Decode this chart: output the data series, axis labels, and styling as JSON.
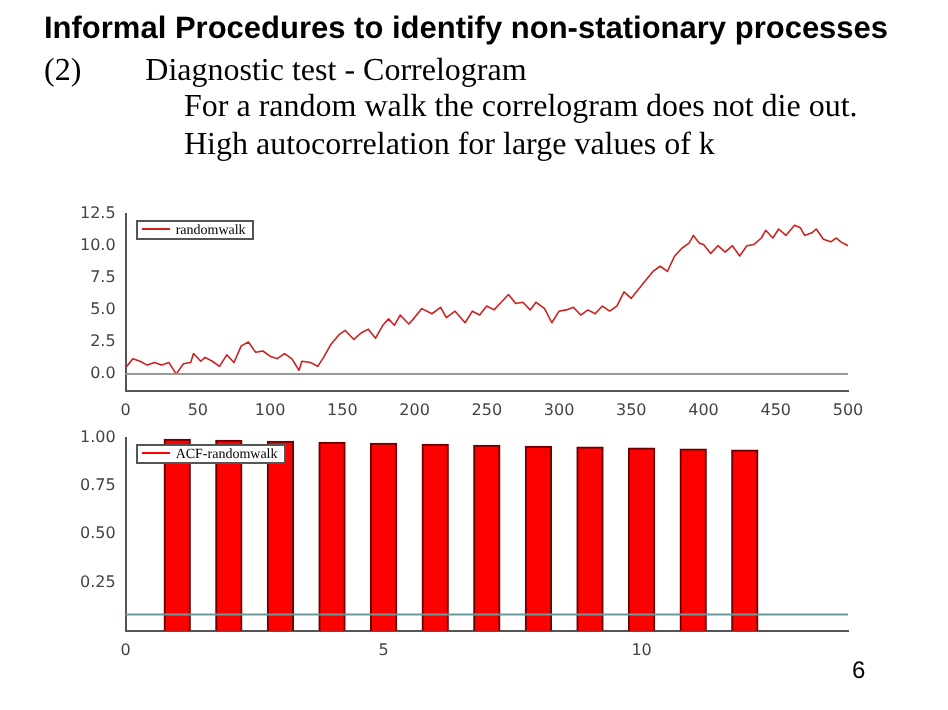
{
  "chart_data": [
    {
      "type": "line",
      "title": "Informal Procedures to identify non-stationary processes",
      "subtitle": "(2)  Diagnostic test - Correlogram",
      "annotations": [
        "For a random walk the correlogram does not die out.",
        "High autocorrelation for large values of k"
      ],
      "series": [
        {
          "name": "randomwalk",
          "color": "#cc2020",
          "x": [
            0,
            5,
            10,
            15,
            20,
            25,
            30,
            35,
            40,
            45,
            47,
            52,
            55,
            60,
            65,
            70,
            75,
            80,
            85,
            90,
            95,
            100,
            105,
            110,
            115,
            120,
            122,
            128,
            133,
            137,
            142,
            148,
            152,
            158,
            163,
            168,
            173,
            178,
            182,
            186,
            190,
            196,
            200,
            205,
            212,
            218,
            222,
            228,
            235,
            240,
            245,
            250,
            255,
            260,
            265,
            270,
            275,
            280,
            284,
            290,
            295,
            300,
            305,
            310,
            315,
            320,
            325,
            330,
            335,
            340,
            345,
            350,
            355,
            360,
            365,
            370,
            375,
            380,
            385,
            390,
            393,
            397,
            400,
            405,
            410,
            415,
            420,
            425,
            430,
            435,
            440,
            443,
            448,
            452,
            457,
            463,
            467,
            470,
            475,
            478,
            483,
            488,
            492,
            495,
            500
          ],
          "values": [
            0.5,
            1.2,
            1.0,
            0.7,
            0.9,
            0.7,
            0.9,
            0.0,
            0.8,
            0.9,
            1.6,
            1.0,
            1.3,
            1.0,
            0.6,
            1.5,
            0.9,
            2.2,
            2.5,
            1.7,
            1.8,
            1.4,
            1.2,
            1.6,
            1.2,
            0.3,
            1.0,
            0.9,
            0.6,
            1.3,
            2.3,
            3.1,
            3.4,
            2.7,
            3.2,
            3.5,
            2.8,
            3.8,
            4.3,
            3.8,
            4.6,
            3.9,
            4.4,
            5.1,
            4.7,
            5.2,
            4.4,
            4.9,
            4.0,
            4.9,
            4.6,
            5.3,
            5.0,
            5.6,
            6.2,
            5.5,
            5.6,
            5.0,
            5.6,
            5.1,
            4.0,
            4.9,
            5.0,
            5.2,
            4.6,
            5.0,
            4.7,
            5.3,
            4.9,
            5.3,
            6.4,
            5.9,
            6.6,
            7.3,
            8.0,
            8.4,
            8.0,
            9.2,
            9.8,
            10.2,
            10.8,
            10.2,
            10.1,
            9.4,
            10.0,
            9.5,
            10.0,
            9.2,
            10.0,
            10.1,
            10.6,
            11.2,
            10.6,
            11.3,
            10.8,
            11.6,
            11.4,
            10.8,
            11.0,
            11.3,
            10.5,
            10.3,
            10.6,
            10.3,
            10.0
          ]
        }
      ],
      "xlim": [
        0,
        500
      ],
      "xticks": [
        0,
        50,
        100,
        150,
        200,
        250,
        300,
        350,
        400,
        450,
        500
      ],
      "ylim": [
        -1.3,
        12.5
      ],
      "yticks": [
        {
          "value": 0,
          "label": "0.0"
        },
        {
          "value": 2.5,
          "label": "2.5"
        },
        {
          "value": 5,
          "label": "5.0"
        },
        {
          "value": 7.5,
          "label": "7.5"
        },
        {
          "value": 10,
          "label": "10.0"
        },
        {
          "value": 12.5,
          "label": "12.5"
        }
      ],
      "ref_lines": [
        {
          "axis": "y",
          "value": 0,
          "color": "#999999"
        }
      ],
      "grid": false,
      "legend": "top left",
      "marker": "none",
      "line_style": "solid"
    },
    {
      "type": "bar",
      "annotations": [
        "6"
      ],
      "series": [
        {
          "name": "ACF-randomwalk",
          "color": "#ff0000",
          "x": [
            1,
            2,
            3,
            4,
            5,
            6,
            7,
            8,
            9,
            10,
            11,
            12
          ],
          "values": [
            0.99,
            0.985,
            0.98,
            0.975,
            0.97,
            0.965,
            0.96,
            0.955,
            0.95,
            0.945,
            0.94,
            0.935
          ]
        }
      ],
      "xlim": [
        0,
        14
      ],
      "xticks": [
        0,
        5,
        10
      ],
      "ylim": [
        0,
        1
      ],
      "yticks": [
        {
          "value": 0.25,
          "label": "0.25"
        },
        {
          "value": 0.5,
          "label": "0.50"
        },
        {
          "value": 0.75,
          "label": "0.75"
        },
        {
          "value": 1,
          "label": "1.00"
        }
      ],
      "ref_lines": [
        {
          "axis": "y",
          "value": 0.085,
          "color": "#6a9a9a"
        }
      ],
      "grid": false,
      "legend": "top left"
    }
  ]
}
